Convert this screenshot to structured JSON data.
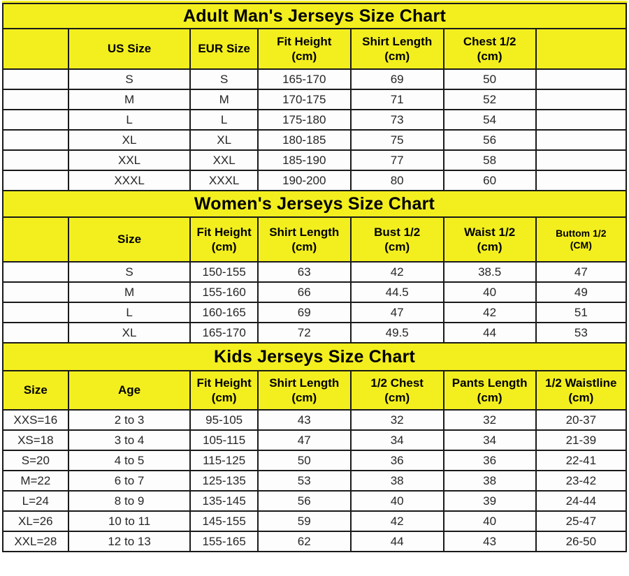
{
  "colors": {
    "yellow": "#f3ef1e",
    "border": "#1a1a1a",
    "cell_bg": "#fdfdfd",
    "text": "#262626",
    "title_text": "#000000"
  },
  "tables": [
    {
      "title": "Adult Man's Jerseys Size Chart",
      "headers": [
        "",
        "US Size",
        "EUR Size",
        "Fit Height\n(cm)",
        "Shirt Length\n(cm)",
        "Chest 1/2\n(cm)",
        ""
      ],
      "rows": [
        [
          "",
          "S",
          "S",
          "165-170",
          "69",
          "50",
          ""
        ],
        [
          "",
          "M",
          "M",
          "170-175",
          "71",
          "52",
          ""
        ],
        [
          "",
          "L",
          "L",
          "175-180",
          "73",
          "54",
          ""
        ],
        [
          "",
          "XL",
          "XL",
          "180-185",
          "75",
          "56",
          ""
        ],
        [
          "",
          "XXL",
          "XXL",
          "185-190",
          "77",
          "58",
          ""
        ],
        [
          "",
          "XXXL",
          "XXXL",
          "190-200",
          "80",
          "60",
          ""
        ]
      ]
    },
    {
      "title": "Women's Jerseys Size Chart",
      "headers": [
        "",
        "Size",
        "Fit Height\n(cm)",
        "Shirt Length\n(cm)",
        "Bust 1/2\n(cm)",
        "Waist 1/2\n(cm)",
        "Buttom 1/2\n(CM)"
      ],
      "rows": [
        [
          "",
          "S",
          "150-155",
          "63",
          "42",
          "38.5",
          "47"
        ],
        [
          "",
          "M",
          "155-160",
          "66",
          "44.5",
          "40",
          "49"
        ],
        [
          "",
          "L",
          "160-165",
          "69",
          "47",
          "42",
          "51"
        ],
        [
          "",
          "XL",
          "165-170",
          "72",
          "49.5",
          "44",
          "53"
        ]
      ]
    },
    {
      "title": "Kids Jerseys Size Chart",
      "headers": [
        "Size",
        "Age",
        "Fit Height\n(cm)",
        "Shirt Length\n(cm)",
        "1/2 Chest\n(cm)",
        "Pants Length\n(cm)",
        "1/2 Waistline\n(cm)"
      ],
      "rows": [
        [
          "XXS=16",
          "2 to 3",
          "95-105",
          "43",
          "32",
          "32",
          "20-37"
        ],
        [
          "XS=18",
          "3 to 4",
          "105-115",
          "47",
          "34",
          "34",
          "21-39"
        ],
        [
          "S=20",
          "4 to 5",
          "115-125",
          "50",
          "36",
          "36",
          "22-41"
        ],
        [
          "M=22",
          "6 to 7",
          "125-135",
          "53",
          "38",
          "38",
          "23-42"
        ],
        [
          "L=24",
          "8 to 9",
          "135-145",
          "56",
          "40",
          "39",
          "24-44"
        ],
        [
          "XL=26",
          "10 to 11",
          "145-155",
          "59",
          "42",
          "40",
          "25-47"
        ],
        [
          "XXL=28",
          "12 to 13",
          "155-165",
          "62",
          "44",
          "43",
          "26-50"
        ]
      ]
    }
  ]
}
